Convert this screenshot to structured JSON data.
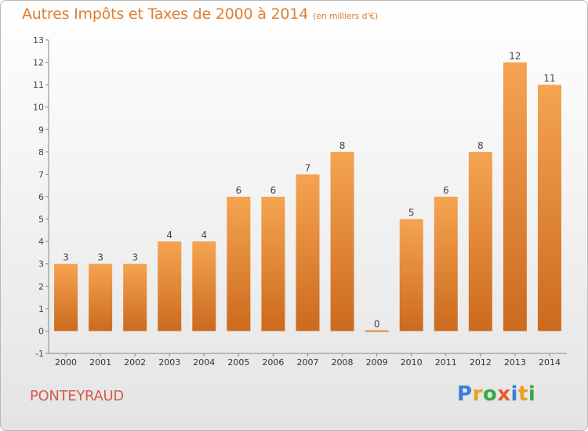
{
  "header": {
    "title": "Autres Impôts et Taxes de 2000 à 2014",
    "unit": "(en milliers d'€)"
  },
  "footer": {
    "place": "PONTEYRAUD",
    "logo_letters": [
      "P",
      "r",
      "o",
      "x",
      "i",
      "t",
      "i"
    ],
    "logo_colors": [
      "#3a7fd5",
      "#e8a020",
      "#3aa843",
      "#e85a2a",
      "#3a7fd5",
      "#e8a020",
      "#3aa843"
    ]
  },
  "chart_data": {
    "type": "bar",
    "categories": [
      "2000",
      "2001",
      "2002",
      "2003",
      "2004",
      "2005",
      "2006",
      "2007",
      "2008",
      "2009",
      "2010",
      "2011",
      "2012",
      "2013",
      "2014"
    ],
    "values": [
      3,
      3,
      3,
      4,
      4,
      6,
      6,
      7,
      8,
      0,
      5,
      6,
      8,
      12,
      11
    ],
    "ylim": [
      -1,
      13
    ],
    "yticks": [
      -1,
      0,
      1,
      2,
      3,
      4,
      5,
      6,
      7,
      8,
      9,
      10,
      11,
      12,
      13
    ],
    "grid": false,
    "bar_color": "#f0923a",
    "bar_color_dark": "#c8651a"
  }
}
